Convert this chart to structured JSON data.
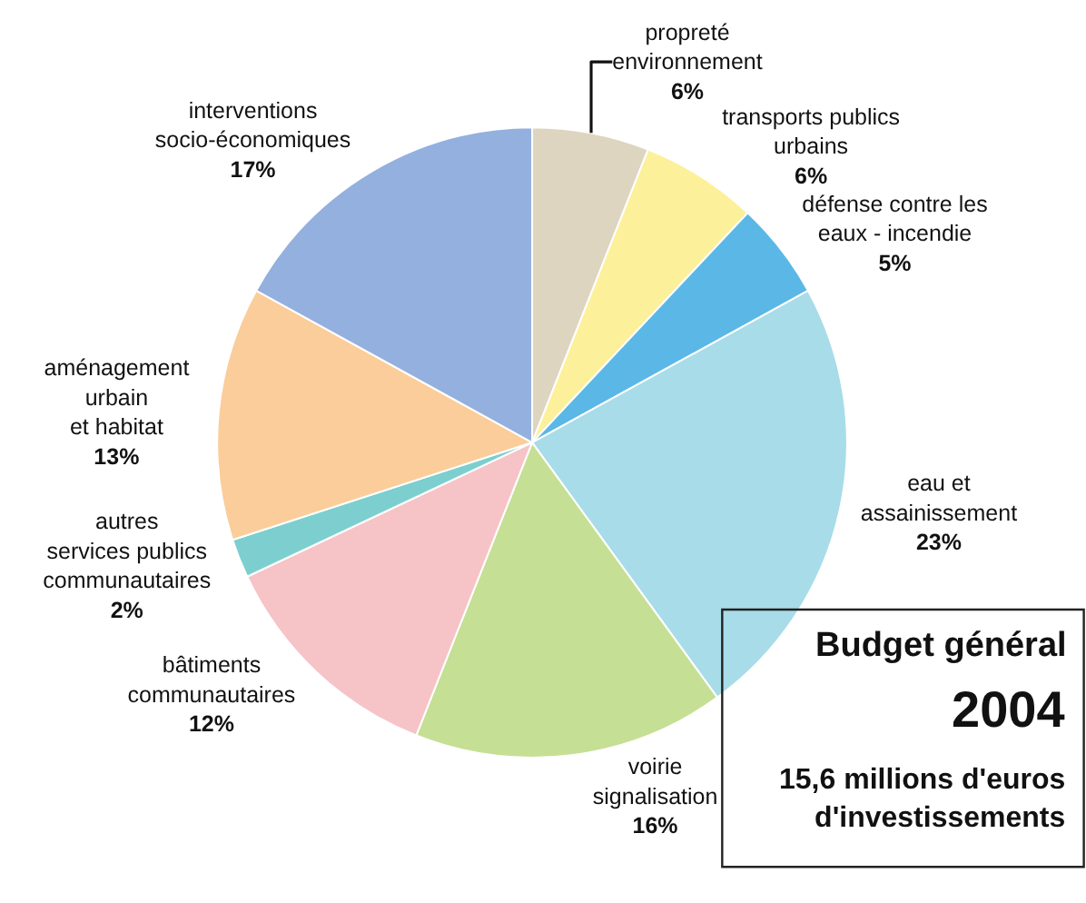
{
  "chart_data": {
    "type": "pie",
    "categories": [
      "propreté\nenvironnement",
      "transports publics\nurbains",
      "défense contre les\neaux - incendie",
      "eau et\nassainissement",
      "voirie\nsignalisation",
      "bâtiments\ncommunautaires",
      "autres\nservices publics\ncommunautaires",
      "aménagement\nurbain\net habitat",
      "interventions\nsocio-économiques"
    ],
    "values": [
      6,
      6,
      5,
      23,
      16,
      12,
      2,
      13,
      17
    ],
    "value_labels": [
      "6%",
      "6%",
      "5%",
      "23%",
      "16%",
      "12%",
      "2%",
      "13%",
      "17%"
    ],
    "colors": [
      "#ddd5c0",
      "#fdf09a",
      "#5bb8e6",
      "#a8dce9",
      "#c5df94",
      "#f6c3c7",
      "#7dcfcf",
      "#fbcd9a",
      "#93b0de"
    ],
    "annotations": [
      "Budget général",
      "2004",
      "15,6 millions d'euros\nd'investissements"
    ]
  }
}
